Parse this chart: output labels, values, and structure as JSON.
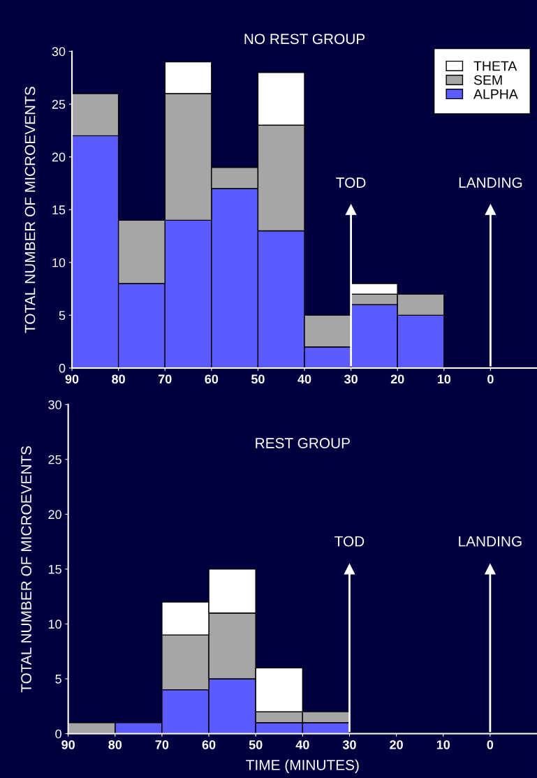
{
  "chart_data": [
    {
      "type": "bar",
      "title": "NO REST GROUP",
      "ylabel": "TOTAL NUMBER OF MICROEVENTS",
      "stacked": true,
      "x": [
        85,
        75,
        65,
        55,
        45,
        35,
        25,
        15
      ],
      "xlim": [
        90,
        -10
      ],
      "xticks": [
        90,
        80,
        70,
        60,
        50,
        40,
        30,
        20,
        10,
        0
      ],
      "ylim": [
        0,
        30
      ],
      "yticks": [
        0,
        5,
        10,
        15,
        20,
        25,
        30
      ],
      "legend": "top right",
      "grid": false,
      "series": [
        {
          "name": "ALPHA",
          "color": "#5b5bff",
          "values": [
            22,
            8,
            14,
            17,
            13,
            2,
            6,
            5
          ]
        },
        {
          "name": "SEM",
          "color": "#a6a6a6",
          "values": [
            4,
            6,
            12,
            2,
            10,
            3,
            1,
            2
          ]
        },
        {
          "name": "THETA",
          "color": "#ffffff",
          "values": [
            0,
            0,
            3,
            0,
            5,
            0,
            1,
            0
          ]
        }
      ],
      "ref_lines": [
        {
          "axis": "x",
          "value": 30,
          "label": "TOD",
          "color": "#ffffff"
        },
        {
          "axis": "x",
          "value": 0,
          "label": "LANDING",
          "color": "#ffffff"
        }
      ]
    },
    {
      "type": "bar",
      "title": "REST GROUP",
      "ylabel": "TOTAL NUMBER OF MICROEVENTS",
      "xlabel": "TIME (MINUTES)",
      "stacked": true,
      "x": [
        85,
        75,
        65,
        55,
        45,
        35
      ],
      "xlim": [
        90,
        -10
      ],
      "xticks": [
        90,
        80,
        70,
        60,
        50,
        40,
        30,
        20,
        10,
        0
      ],
      "ylim": [
        0,
        30
      ],
      "yticks": [
        0,
        5,
        10,
        15,
        20,
        25,
        30
      ],
      "grid": false,
      "series": [
        {
          "color": "#5b5bff",
          "values": [
            0,
            1,
            4,
            5,
            1,
            1
          ]
        },
        {
          "color": "#a6a6a6",
          "values": [
            1,
            0,
            5,
            6,
            1,
            1
          ]
        },
        {
          "color": "#ffffff",
          "values": [
            0,
            0,
            3,
            4,
            4,
            0
          ]
        }
      ],
      "ref_lines": [
        {
          "axis": "x",
          "value": 30,
          "label": "TOD",
          "color": "#ffffff"
        },
        {
          "axis": "x",
          "value": 0,
          "label": "LANDING",
          "color": "#ffffff"
        }
      ]
    }
  ]
}
